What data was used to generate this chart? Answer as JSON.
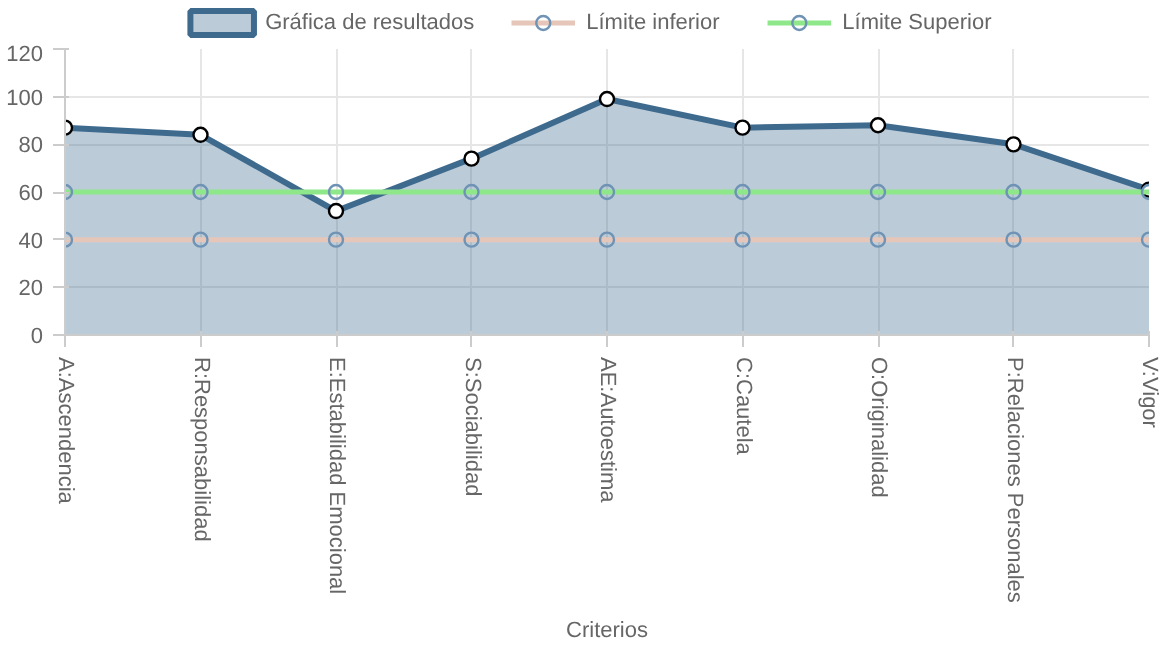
{
  "chart_data": {
    "type": "line",
    "xlabel": "Criterios",
    "categories": [
      "A:Ascendencia",
      "R:Responsabilidad",
      "E:Estabilidad Emocional",
      "S:Sociabilidad",
      "AE:Autoestima",
      "C:Cautela",
      "O:Originalidad",
      "P:Relaciones Personales",
      "V:Vigor"
    ],
    "series": [
      {
        "name": "Gráfica de resultados",
        "type": "area",
        "color": "#3e6a8e",
        "values": [
          87,
          84,
          52,
          74,
          99,
          87,
          88,
          80,
          61
        ]
      },
      {
        "name": "Límite inferior",
        "color": "#e6c6b8",
        "values": [
          40,
          40,
          40,
          40,
          40,
          40,
          40,
          40,
          40
        ]
      },
      {
        "name": "Límite Superior",
        "color": "#8ee88a",
        "values": [
          60,
          60,
          60,
          60,
          60,
          60,
          60,
          60,
          60
        ]
      }
    ],
    "ylim": [
      0,
      120
    ],
    "yticks": [
      0,
      20,
      40,
      60,
      80,
      100,
      120
    ],
    "grid": true,
    "legend": "top",
    "marker": "circle"
  }
}
